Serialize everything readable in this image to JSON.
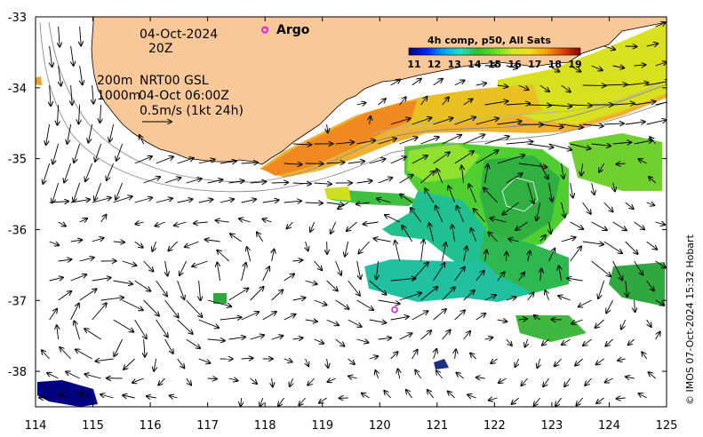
{
  "map": {
    "date_label": "04-Oct-2024",
    "hour_label": "20Z",
    "depth_label_1": "200m",
    "depth_label_2": "1000m",
    "model_label": "NRT00 GSL",
    "model_time_label": "04-Oct 06:00Z",
    "scale_label": "0.5m/s (1kt 24h)",
    "argo_label": "Argo",
    "credit": "© IMOS 07-Oct-2024 15:32 Hobart",
    "colorbar": {
      "title": "4h comp, p50, All Sats",
      "ticks": [
        "11",
        "12",
        "13",
        "14",
        "15",
        "16",
        "17",
        "18",
        "19"
      ],
      "colors": [
        "#00007f",
        "#0020ff",
        "#00a0ff",
        "#20e0c0",
        "#30c030",
        "#60e020",
        "#c8e820",
        "#f0e020",
        "#f8a000",
        "#e04000",
        "#800000"
      ]
    },
    "x_axis": {
      "ticks": [
        "114",
        "115",
        "116",
        "117",
        "118",
        "119",
        "120",
        "121",
        "122",
        "123",
        "124",
        "125"
      ],
      "range": [
        114,
        125
      ]
    },
    "y_axis": {
      "ticks": [
        "-33",
        "-34",
        "-35",
        "-36",
        "-37",
        "-38"
      ],
      "range": [
        -38.5,
        -33
      ]
    },
    "land_color": "#f8c898",
    "argo_floats": [
      {
        "lon": 118.0,
        "lat": -33.18
      },
      {
        "lon": 120.26,
        "lat": -37.13
      }
    ]
  }
}
